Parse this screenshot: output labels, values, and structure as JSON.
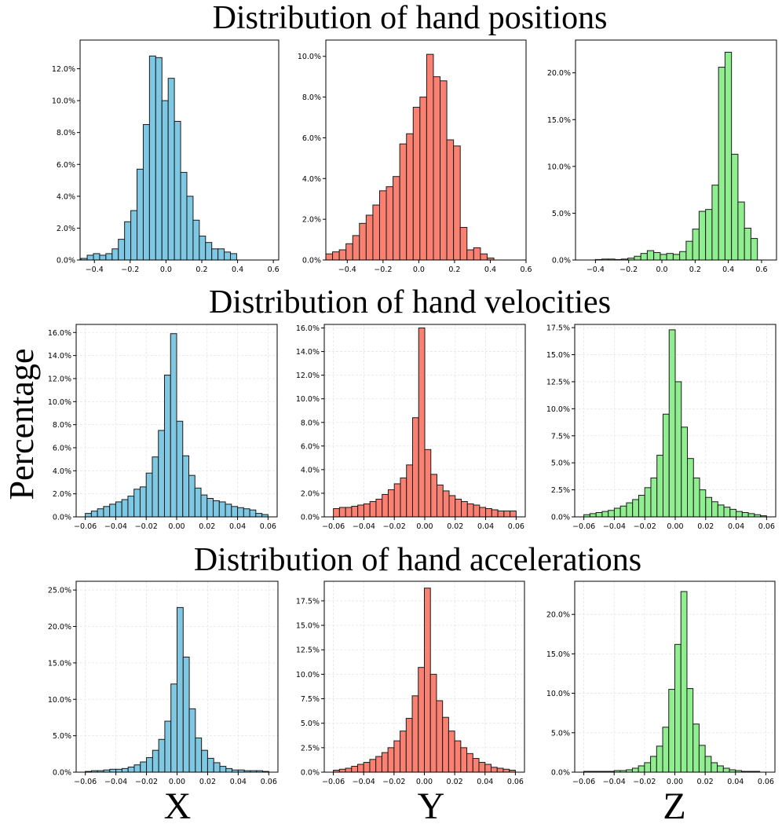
{
  "figure": {
    "row_titles": [
      "Distribution of hand positions",
      "Distribution of hand velocities",
      "Distribution of hand accelerations"
    ],
    "ylabel": "Percentage",
    "column_labels": [
      "X",
      "Y",
      "Z"
    ]
  },
  "chart_data": [
    {
      "type": "bar",
      "title": "",
      "xlabel": "",
      "ylabel": "",
      "row": "Distribution of hand positions",
      "column": "X",
      "color": "#7ec8e3",
      "bin_start": -0.475,
      "bin_width": 0.0348,
      "xlim": [
        -0.48,
        0.63
      ],
      "ylim": [
        0,
        0.138
      ],
      "values": [
        0.001,
        0.003,
        0.004,
        0.003,
        0.004,
        0.007,
        0.013,
        0.024,
        0.031,
        0.057,
        0.085,
        0.128,
        0.127,
        0.1,
        0.114,
        0.087,
        0.055,
        0.04,
        0.025,
        0.015,
        0.011,
        0.007,
        0.007,
        0.005,
        0.004
      ],
      "xticks": [
        -0.4,
        -0.2,
        0.0,
        0.2,
        0.4,
        0.6
      ],
      "xtick_labels": [
        "−0.4",
        "−0.2",
        "0.0",
        "0.2",
        "0.4",
        "0.6"
      ],
      "yticks": [
        0,
        0.02,
        0.04,
        0.06,
        0.08,
        0.1,
        0.12
      ],
      "ytick_labels": [
        "0.0%",
        "2.0%",
        "4.0%",
        "6.0%",
        "8.0%",
        "10.0%",
        "12.0%"
      ],
      "grid": false
    },
    {
      "type": "bar",
      "title": "",
      "xlabel": "",
      "ylabel": "",
      "row": "Distribution of hand positions",
      "column": "Y",
      "color": "#fa8072",
      "bin_start": -0.52,
      "bin_width": 0.0376,
      "xlim": [
        -0.52,
        0.6
      ],
      "ylim": [
        0,
        0.108
      ],
      "values": [
        0.003,
        0.004,
        0.005,
        0.008,
        0.012,
        0.018,
        0.022,
        0.027,
        0.034,
        0.036,
        0.041,
        0.057,
        0.062,
        0.075,
        0.08,
        0.101,
        0.09,
        0.088,
        0.059,
        0.056,
        0.016,
        0.005,
        0.006,
        0.003,
        0.001,
        0.0
      ],
      "xticks": [
        -0.4,
        -0.2,
        0.0,
        0.2,
        0.4,
        0.6
      ],
      "xtick_labels": [
        "−0.4",
        "−0.2",
        "0.0",
        "0.2",
        "0.4",
        "0.6"
      ],
      "yticks": [
        0,
        0.02,
        0.04,
        0.06,
        0.08,
        0.1
      ],
      "ytick_labels": [
        "0.0%",
        "2.0%",
        "4.0%",
        "6.0%",
        "8.0%",
        "10.0%"
      ],
      "grid": false
    },
    {
      "type": "bar",
      "title": "",
      "xlabel": "",
      "ylabel": "",
      "row": "Distribution of hand positions",
      "column": "Z",
      "color": "#90ee90",
      "bin_start": -0.4,
      "bin_width": 0.039,
      "xlim": [
        -0.52,
        0.69
      ],
      "ylim": [
        0,
        0.235
      ],
      "values": [
        0.0005,
        0.001,
        0.001,
        0.0005,
        0.001,
        0.002,
        0.004,
        0.007,
        0.01,
        0.008,
        0.006,
        0.007,
        0.006,
        0.009,
        0.02,
        0.033,
        0.052,
        0.054,
        0.08,
        0.206,
        0.222,
        0.113,
        0.062,
        0.034,
        0.023
      ],
      "xticks": [
        -0.4,
        -0.2,
        0.0,
        0.2,
        0.4,
        0.6
      ],
      "xtick_labels": [
        "−0.4",
        "−0.2",
        "0.0",
        "0.2",
        "0.4",
        "0.6"
      ],
      "yticks": [
        0,
        0.05,
        0.1,
        0.15,
        0.2
      ],
      "ytick_labels": [
        "0.0%",
        "5.0%",
        "10.0%",
        "15.0%",
        "20.0%"
      ],
      "grid": false
    },
    {
      "type": "bar",
      "title": "",
      "xlabel": "",
      "ylabel": "",
      "row": "Distribution of hand velocities",
      "column": "X",
      "color": "#7ec8e3",
      "bin_start": -0.06,
      "bin_width": 0.004,
      "xlim": [
        -0.066,
        0.066
      ],
      "ylim": [
        0,
        0.167
      ],
      "values": [
        0.003,
        0.005,
        0.007,
        0.009,
        0.011,
        0.013,
        0.015,
        0.018,
        0.024,
        0.026,
        0.038,
        0.052,
        0.075,
        0.123,
        0.159,
        0.083,
        0.053,
        0.036,
        0.025,
        0.019,
        0.016,
        0.014,
        0.013,
        0.011,
        0.009,
        0.008,
        0.007,
        0.006,
        0.003,
        0.002
      ],
      "xticks": [
        -0.06,
        -0.04,
        -0.02,
        0.0,
        0.02,
        0.04,
        0.06
      ],
      "xtick_labels": [
        "−0.06",
        "−0.04",
        "−0.02",
        "0.00",
        "0.02",
        "0.04",
        "0.06"
      ],
      "yticks": [
        0,
        0.02,
        0.04,
        0.06,
        0.08,
        0.1,
        0.12,
        0.14,
        0.16
      ],
      "ytick_labels": [
        "0.0%",
        "2.0%",
        "4.0%",
        "6.0%",
        "8.0%",
        "10.0%",
        "12.0%",
        "14.0%",
        "16.0%"
      ],
      "grid": true
    },
    {
      "type": "bar",
      "title": "",
      "xlabel": "",
      "ylabel": "",
      "row": "Distribution of hand velocities",
      "column": "Y",
      "color": "#fa8072",
      "bin_start": -0.06,
      "bin_width": 0.004,
      "xlim": [
        -0.066,
        0.066
      ],
      "ylim": [
        0,
        0.163
      ],
      "values": [
        0.007,
        0.008,
        0.008,
        0.009,
        0.01,
        0.011,
        0.013,
        0.015,
        0.019,
        0.023,
        0.028,
        0.033,
        0.044,
        0.084,
        0.16,
        0.057,
        0.036,
        0.027,
        0.022,
        0.018,
        0.015,
        0.013,
        0.011,
        0.01,
        0.008,
        0.007,
        0.006,
        0.005,
        0.005,
        0.005
      ],
      "xticks": [
        -0.06,
        -0.04,
        -0.02,
        0.0,
        0.02,
        0.04,
        0.06
      ],
      "xtick_labels": [
        "−0.06",
        "−0.04",
        "−0.02",
        "0.00",
        "0.02",
        "0.04",
        "0.06"
      ],
      "yticks": [
        0,
        0.02,
        0.04,
        0.06,
        0.08,
        0.1,
        0.12,
        0.14,
        0.16
      ],
      "ytick_labels": [
        "0.0%",
        "2.0%",
        "4.0%",
        "6.0%",
        "8.0%",
        "10.0%",
        "12.0%",
        "14.0%",
        "16.0%"
      ],
      "grid": true
    },
    {
      "type": "bar",
      "title": "",
      "xlabel": "",
      "ylabel": "",
      "row": "Distribution of hand velocities",
      "column": "Z",
      "color": "#90ee90",
      "bin_start": -0.06,
      "bin_width": 0.004,
      "xlim": [
        -0.066,
        0.066
      ],
      "ylim": [
        0,
        0.178
      ],
      "values": [
        0.002,
        0.003,
        0.004,
        0.005,
        0.006,
        0.008,
        0.01,
        0.013,
        0.016,
        0.02,
        0.027,
        0.036,
        0.057,
        0.095,
        0.173,
        0.125,
        0.083,
        0.054,
        0.036,
        0.025,
        0.018,
        0.014,
        0.011,
        0.009,
        0.007,
        0.005,
        0.004,
        0.003,
        0.002,
        0.001
      ],
      "xticks": [
        -0.06,
        -0.04,
        -0.02,
        0.0,
        0.02,
        0.04,
        0.06
      ],
      "xtick_labels": [
        "−0.06",
        "−0.04",
        "−0.02",
        "0.00",
        "0.02",
        "0.04",
        "0.06"
      ],
      "yticks": [
        0,
        0.025,
        0.05,
        0.075,
        0.1,
        0.125,
        0.15,
        0.175
      ],
      "ytick_labels": [
        "0.0%",
        "2.5%",
        "5.0%",
        "7.5%",
        "10.0%",
        "12.5%",
        "15.0%",
        "17.5%"
      ],
      "grid": true
    },
    {
      "type": "bar",
      "title": "",
      "xlabel": "",
      "ylabel": "",
      "row": "Distribution of hand accelerations",
      "column": "X",
      "color": "#7ec8e3",
      "bin_start": -0.06,
      "bin_width": 0.004,
      "xlim": [
        -0.066,
        0.066
      ],
      "ylim": [
        0,
        0.262
      ],
      "values": [
        0.001,
        0.002,
        0.002,
        0.003,
        0.004,
        0.004,
        0.005,
        0.007,
        0.01,
        0.014,
        0.02,
        0.03,
        0.045,
        0.07,
        0.121,
        0.226,
        0.158,
        0.087,
        0.047,
        0.03,
        0.019,
        0.013,
        0.008,
        0.005,
        0.003,
        0.003,
        0.002,
        0.002,
        0.002,
        0.001
      ],
      "xticks": [
        -0.06,
        -0.04,
        -0.02,
        0.0,
        0.02,
        0.04,
        0.06
      ],
      "xtick_labels": [
        "−0.06",
        "−0.04",
        "−0.02",
        "0.00",
        "0.02",
        "0.04",
        "0.06"
      ],
      "yticks": [
        0,
        0.05,
        0.1,
        0.15,
        0.2,
        0.25
      ],
      "ytick_labels": [
        "0.0%",
        "5.0%",
        "10.0%",
        "15.0%",
        "20.0%",
        "25.0%"
      ],
      "grid": true
    },
    {
      "type": "bar",
      "title": "",
      "xlabel": "",
      "ylabel": "",
      "row": "Distribution of hand accelerations",
      "column": "Y",
      "color": "#fa8072",
      "bin_start": -0.06,
      "bin_width": 0.004,
      "xlim": [
        -0.066,
        0.066
      ],
      "ylim": [
        0,
        0.195
      ],
      "values": [
        0.002,
        0.003,
        0.004,
        0.006,
        0.008,
        0.01,
        0.013,
        0.016,
        0.02,
        0.025,
        0.032,
        0.042,
        0.055,
        0.078,
        0.107,
        0.188,
        0.1,
        0.073,
        0.056,
        0.042,
        0.032,
        0.025,
        0.019,
        0.014,
        0.01,
        0.008,
        0.005,
        0.004,
        0.003,
        0.002
      ],
      "xticks": [
        -0.06,
        -0.04,
        -0.02,
        0.0,
        0.02,
        0.04,
        0.06
      ],
      "xtick_labels": [
        "−0.06",
        "−0.04",
        "−0.02",
        "0.00",
        "0.02",
        "0.04",
        "0.06"
      ],
      "yticks": [
        0,
        0.025,
        0.05,
        0.075,
        0.1,
        0.125,
        0.15,
        0.175
      ],
      "ytick_labels": [
        "0.0%",
        "2.5%",
        "5.0%",
        "7.5%",
        "10.0%",
        "12.5%",
        "15.0%",
        "17.5%"
      ],
      "grid": true
    },
    {
      "type": "bar",
      "title": "",
      "xlabel": "",
      "ylabel": "",
      "row": "Distribution of hand accelerations",
      "column": "Z",
      "color": "#90ee90",
      "bin_start": -0.06,
      "bin_width": 0.004,
      "xlim": [
        -0.066,
        0.066
      ],
      "ylim": [
        0,
        0.242
      ],
      "values": [
        0.001,
        0.001,
        0.001,
        0.001,
        0.001,
        0.002,
        0.002,
        0.003,
        0.005,
        0.008,
        0.012,
        0.02,
        0.033,
        0.057,
        0.105,
        0.162,
        0.229,
        0.106,
        0.061,
        0.034,
        0.02,
        0.012,
        0.008,
        0.005,
        0.003,
        0.002,
        0.001,
        0.001,
        0.001,
        0.0
      ],
      "xticks": [
        -0.06,
        -0.04,
        -0.02,
        0.0,
        0.02,
        0.04,
        0.06
      ],
      "xtick_labels": [
        "−0.06",
        "−0.04",
        "−0.02",
        "0.00",
        "0.02",
        "0.04",
        "0.06"
      ],
      "yticks": [
        0,
        0.05,
        0.1,
        0.15,
        0.2
      ],
      "ytick_labels": [
        "0.0%",
        "5.0%",
        "10.0%",
        "15.0%",
        "20.0%"
      ],
      "grid": true
    }
  ]
}
